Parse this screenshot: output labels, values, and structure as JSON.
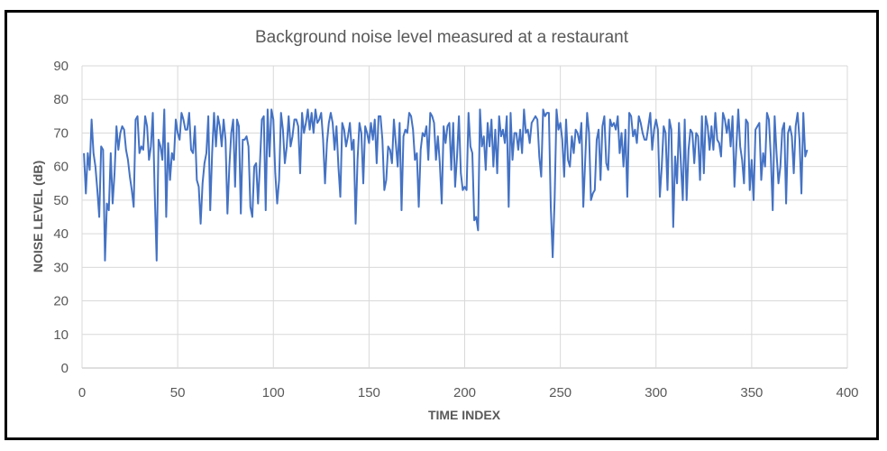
{
  "chart_data": {
    "type": "line",
    "title": "Background noise level measured at a restaurant",
    "xlabel": "TIME INDEX",
    "ylabel": "NOISE LEVEL (dB)",
    "xlim": [
      0,
      400
    ],
    "ylim": [
      0,
      90
    ],
    "x_ticks": [
      0,
      50,
      100,
      150,
      200,
      250,
      300,
      350,
      400
    ],
    "y_ticks": [
      0,
      10,
      20,
      30,
      40,
      50,
      60,
      70,
      80,
      90
    ],
    "grid": true,
    "legend": "none",
    "line_color": "#4472C4",
    "series": [
      {
        "x_start": 1,
        "x_step": 1,
        "values": [
          64,
          52,
          64,
          59,
          74,
          64,
          60,
          53,
          45,
          66,
          65,
          32,
          49,
          47,
          64,
          49,
          58,
          72,
          65,
          70,
          72,
          71,
          65,
          62,
          57,
          53,
          48,
          74,
          75,
          64,
          66,
          65,
          75,
          72,
          62,
          66,
          76,
          52,
          32,
          68,
          66,
          62,
          77,
          45,
          67,
          56,
          64,
          62,
          74,
          70,
          68,
          76,
          74,
          71,
          71,
          76,
          65,
          64,
          72,
          56,
          54,
          43,
          55,
          61,
          64,
          75,
          47,
          64,
          76,
          66,
          75,
          72,
          66,
          74,
          68,
          46,
          60,
          70,
          74,
          54,
          74,
          72,
          46,
          68,
          68,
          69,
          66,
          48,
          45,
          60,
          61,
          49,
          61,
          74,
          75,
          47,
          77,
          63,
          77,
          74,
          58,
          49,
          56,
          76,
          71,
          61,
          66,
          75,
          66,
          69,
          74,
          74,
          72,
          58,
          76,
          70,
          73,
          77,
          71,
          76,
          70,
          77,
          73,
          74,
          76,
          68,
          55,
          67,
          73,
          76,
          73,
          65,
          72,
          60,
          51,
          73,
          71,
          66,
          69,
          73,
          65,
          68,
          43,
          62,
          73,
          70,
          55,
          72,
          70,
          67,
          73,
          68,
          74,
          61,
          75,
          75,
          68,
          53,
          56,
          66,
          65,
          61,
          74,
          67,
          60,
          73,
          47,
          69,
          71,
          70,
          76,
          75,
          71,
          62,
          64,
          48,
          65,
          70,
          69,
          72,
          62,
          76,
          75,
          73,
          62,
          69,
          61,
          49,
          72,
          67,
          72,
          73,
          59,
          73,
          54,
          63,
          75,
          58,
          53,
          54,
          53,
          76,
          66,
          64,
          44,
          45,
          41,
          77,
          66,
          69,
          59,
          73,
          66,
          74,
          60,
          71,
          58,
          75,
          69,
          71,
          67,
          75,
          48,
          76,
          62,
          70,
          70,
          65,
          71,
          64,
          77,
          70,
          71,
          67,
          73,
          74,
          75,
          74,
          63,
          57,
          77,
          75,
          76,
          76,
          48,
          33,
          50,
          77,
          71,
          73,
          68,
          57,
          74,
          62,
          60,
          69,
          64,
          71,
          70,
          67,
          73,
          48,
          62,
          76,
          70,
          50,
          52,
          53,
          68,
          71,
          56,
          72,
          75,
          61,
          59,
          74,
          72,
          73,
          71,
          75,
          64,
          70,
          60,
          71,
          51,
          76,
          75,
          69,
          71,
          67,
          75,
          73,
          70,
          68,
          68,
          72,
          76,
          65,
          71,
          74,
          71,
          51,
          60,
          72,
          70,
          53,
          74,
          71,
          42,
          63,
          55,
          73,
          61,
          50,
          74,
          50,
          65,
          71,
          70,
          61,
          70,
          69,
          56,
          75,
          58,
          75,
          72,
          65,
          72,
          65,
          76,
          68,
          67,
          63,
          76,
          74,
          70,
          74,
          66,
          75,
          54,
          66,
          77,
          66,
          62,
          55,
          74,
          73,
          53,
          62,
          50,
          71,
          72,
          73,
          56,
          64,
          60,
          76,
          74,
          63,
          47,
          75,
          64,
          55,
          60,
          71,
          73,
          49,
          70,
          72,
          69,
          58,
          72,
          76,
          68,
          52,
          76,
          63,
          65
        ]
      }
    ]
  }
}
